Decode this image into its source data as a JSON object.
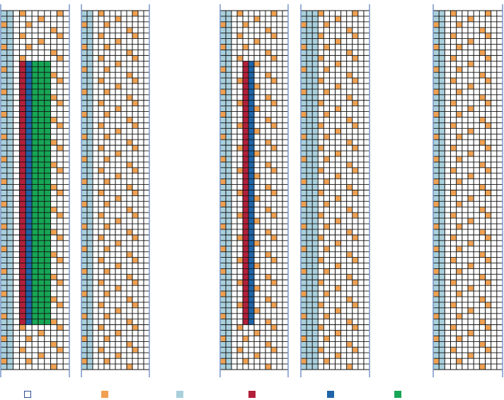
{
  "colors": {
    "empty": "#ffffff",
    "empty_border": "#2e4e8f",
    "orange": "#f0a050",
    "light_blue": "#a9cfdc",
    "red": "#b3203a",
    "blue": "#1f64a8",
    "green": "#17a655",
    "grid": "#111111",
    "frame": "#6f8fc4"
  },
  "panels": [
    {
      "id": "panel-1",
      "columns": 11,
      "light_blue_columns": [
        0,
        1
      ],
      "bands": [
        {
          "color": "red",
          "column": 3,
          "from_row": 9,
          "to_row": 56
        },
        {
          "color": "blue",
          "column": 4,
          "from_row": 9,
          "to_row": 56
        },
        {
          "color": "green",
          "columns": [
            5,
            6,
            7
          ],
          "from_row": 9,
          "to_row": 56
        }
      ]
    },
    {
      "id": "panel-2",
      "columns": 12,
      "light_blue_columns": [
        0,
        1
      ],
      "bands": []
    },
    {
      "id": "panel-3",
      "columns": 12,
      "light_blue_columns": [
        0,
        1
      ],
      "bands": [
        {
          "color": "red",
          "column": 4,
          "from_row": 9,
          "to_row": 56
        },
        {
          "color": "blue",
          "column": 5,
          "from_row": 9,
          "to_row": 56
        }
      ]
    },
    {
      "id": "panel-4",
      "columns": 12,
      "light_blue_columns": [
        0,
        1,
        2
      ],
      "bands": []
    },
    {
      "id": "panel-5",
      "columns": 12,
      "light_blue_columns": [
        0,
        1
      ],
      "bands": []
    }
  ],
  "rows": 64,
  "orange_cells": {
    "row_period": 4,
    "pattern": [
      [
        0,
        3,
        9
      ],
      [
        1,
        6
      ],
      [
        2,
        0,
        4
      ],
      [
        3,
        8
      ]
    ]
  },
  "legend": [
    {
      "name": "empty-cell",
      "color": "empty"
    },
    {
      "name": "orange-cell",
      "color": "orange"
    },
    {
      "name": "light-blue-cell",
      "color": "light_blue"
    },
    {
      "name": "red-cell",
      "color": "red"
    },
    {
      "name": "blue-cell",
      "color": "blue"
    },
    {
      "name": "green-cell",
      "color": "green"
    }
  ]
}
